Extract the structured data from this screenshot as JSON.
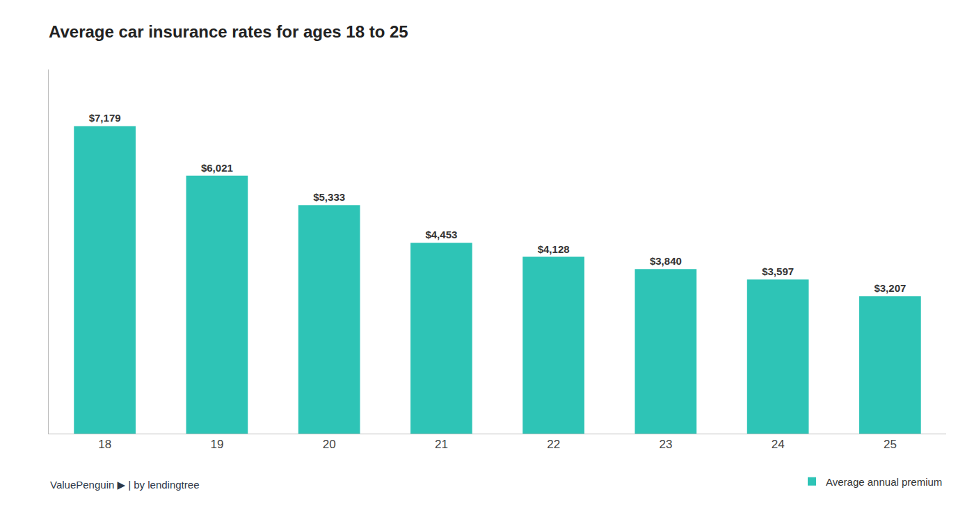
{
  "chart_data": {
    "type": "bar",
    "title": "Average car insurance rates for ages 18 to 25",
    "categories": [
      "18",
      "19",
      "20",
      "21",
      "22",
      "23",
      "24",
      "25"
    ],
    "series": [
      {
        "name": "Average annual premium",
        "color": "#2EC4B6",
        "values": [
          7179,
          6021,
          5333,
          4453,
          4128,
          3840,
          3597,
          3207
        ],
        "value_labels": [
          "$7,179",
          "$6,021",
          "$5,333",
          "$4,453",
          "$4,128",
          "$3,840",
          "$3,597",
          "$3,207"
        ]
      }
    ],
    "ylim": [
      0,
      8500
    ],
    "yticks": [],
    "tick_labels": "x",
    "grid": false,
    "legend": "lower right",
    "data_labels": true,
    "annotations": [
      "ValuePenguin",
      "▶",
      "|",
      "by",
      "lendingtree"
    ]
  }
}
